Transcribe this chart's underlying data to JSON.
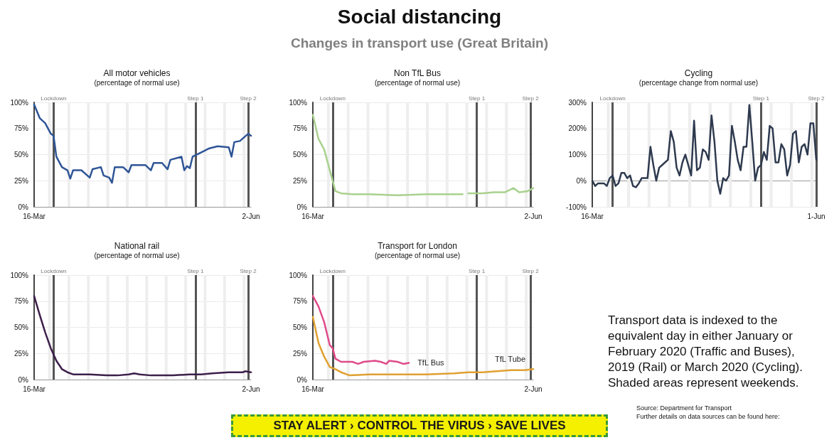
{
  "chart_data": [
    {
      "type": "other",
      "title": "Social distancing",
      "subtitle": "Changes in transport use (Great Britain)"
    },
    {
      "type": "line",
      "title": "All motor vehicles",
      "subtitle": "(percentage of normal use)",
      "marker": "none",
      "line_style": "solid",
      "grid": "y",
      "xlim": [
        "--03-16",
        "--06-02"
      ],
      "xticks": [
        {
          "value": "--03-16",
          "label": "16-Mar"
        },
        {
          "value": "--06-02",
          "label": "2-Jun"
        }
      ],
      "ylim": [
        0,
        100
      ],
      "yticks": [
        {
          "value": 0,
          "label": "0%"
        },
        {
          "value": 25,
          "label": "25%"
        },
        {
          "value": 50,
          "label": "50%"
        },
        {
          "value": 75,
          "label": "75%"
        },
        {
          "value": 100,
          "label": "100%"
        }
      ],
      "series": [
        {
          "color": "#2f5597",
          "x": [
            "--03-16",
            "--03-18",
            "--03-20",
            "--03-22",
            "--03-23",
            "--03-24",
            "--03-26",
            "--03-28",
            "--03-29",
            "--03-30",
            "--04-02",
            "--04-05",
            "--04-06",
            "--04-09",
            "--04-10",
            "--04-12",
            "--04-13",
            "--04-14",
            "--04-17",
            "--04-19",
            "--04-20",
            "--04-25",
            "--04-27",
            "--04-28",
            "--05-01",
            "--05-03",
            "--05-04",
            "--05-08",
            "--05-09",
            "--05-10",
            "--05-11",
            "--05-12",
            "--05-15",
            "--05-18",
            "--05-21",
            "--05-25",
            "--05-26",
            "--05-27",
            "--05-29",
            "--06-01",
            "--06-02"
          ],
          "values": [
            98,
            85,
            80,
            70,
            68,
            48,
            38,
            35,
            27,
            35,
            35,
            28,
            36,
            38,
            30,
            28,
            23,
            38,
            38,
            33,
            40,
            40,
            35,
            42,
            42,
            36,
            45,
            48,
            35,
            39,
            37,
            48,
            52,
            56,
            58,
            57,
            48,
            62,
            63,
            70,
            68
          ]
        }
      ],
      "ref_lines": [
        {
          "axis": "x",
          "value": "--03-23",
          "label": "Lockdown",
          "color": "#555555"
        },
        {
          "axis": "x",
          "value": "--05-13",
          "label": "Step 1",
          "color": "#555555"
        },
        {
          "axis": "x",
          "value": "--06-01",
          "label": "Step 2",
          "color": "#555555"
        }
      ],
      "bands": [
        {
          "axis": "x",
          "from": "--03-21",
          "to": "--03-22",
          "color": "#eeeeee"
        },
        {
          "axis": "x",
          "from": "--03-28",
          "to": "--03-29",
          "color": "#eeeeee"
        },
        {
          "axis": "x",
          "from": "--04-04",
          "to": "--04-05",
          "color": "#eeeeee"
        },
        {
          "axis": "x",
          "from": "--04-11",
          "to": "--04-12",
          "color": "#eeeeee"
        },
        {
          "axis": "x",
          "from": "--04-18",
          "to": "--04-19",
          "color": "#eeeeee"
        },
        {
          "axis": "x",
          "from": "--04-25",
          "to": "--04-26",
          "color": "#eeeeee"
        },
        {
          "axis": "x",
          "from": "--05-02",
          "to": "--05-03",
          "color": "#eeeeee"
        },
        {
          "axis": "x",
          "from": "--05-09",
          "to": "--05-10",
          "color": "#eeeeee"
        },
        {
          "axis": "x",
          "from": "--05-16",
          "to": "--05-17",
          "color": "#eeeeee"
        },
        {
          "axis": "x",
          "from": "--05-23",
          "to": "--05-24",
          "color": "#eeeeee"
        },
        {
          "axis": "x",
          "from": "--05-30",
          "to": "--05-31",
          "color": "#eeeeee"
        }
      ]
    },
    {
      "type": "line",
      "title": "Non TfL Bus",
      "subtitle": "(percentage of normal use)",
      "marker": "none",
      "line_style": "solid",
      "grid": "y",
      "xlim": [
        "--03-16",
        "--06-02"
      ],
      "xticks": [
        {
          "value": "--03-16",
          "label": "16-Mar"
        },
        {
          "value": "--06-02",
          "label": "2-Jun"
        }
      ],
      "ylim": [
        0,
        100
      ],
      "yticks": [
        {
          "value": 0,
          "label": "0%"
        },
        {
          "value": 25,
          "label": "25%"
        },
        {
          "value": 50,
          "label": "50%"
        },
        {
          "value": 75,
          "label": "75%"
        },
        {
          "value": 100,
          "label": "100%"
        }
      ],
      "series": [
        {
          "color": "#a9d18e",
          "x": [
            "--03-16",
            "--03-18",
            "--03-20",
            "--03-22",
            "--03-24",
            "--03-26",
            "--03-30",
            "--04-05",
            "--04-15",
            "--04-25",
            "--05-05",
            "--05-08",
            "--05-09",
            "--05-10",
            "--05-15",
            "--05-19",
            "--05-23",
            "--05-26",
            "--05-28",
            "--05-31",
            "--06-02"
          ],
          "values": [
            88,
            65,
            55,
            35,
            15,
            13,
            12,
            12,
            11,
            12,
            12,
            12,
            null,
            13,
            13,
            14,
            14,
            18,
            14,
            15,
            18
          ]
        }
      ],
      "ref_lines": [
        {
          "axis": "x",
          "value": "--03-23",
          "label": "Lockdown",
          "color": "#555555"
        },
        {
          "axis": "x",
          "value": "--05-13",
          "label": "Step 1",
          "color": "#555555"
        },
        {
          "axis": "x",
          "value": "--06-01",
          "label": "Step 2",
          "color": "#555555"
        }
      ],
      "bands": [
        {
          "axis": "x",
          "from": "--03-21",
          "to": "--03-22",
          "color": "#eeeeee"
        },
        {
          "axis": "x",
          "from": "--03-28",
          "to": "--03-29",
          "color": "#eeeeee"
        },
        {
          "axis": "x",
          "from": "--04-04",
          "to": "--04-05",
          "color": "#eeeeee"
        },
        {
          "axis": "x",
          "from": "--04-11",
          "to": "--04-12",
          "color": "#eeeeee"
        },
        {
          "axis": "x",
          "from": "--04-18",
          "to": "--04-19",
          "color": "#eeeeee"
        },
        {
          "axis": "x",
          "from": "--04-25",
          "to": "--04-26",
          "color": "#eeeeee"
        },
        {
          "axis": "x",
          "from": "--05-02",
          "to": "--05-03",
          "color": "#eeeeee"
        },
        {
          "axis": "x",
          "from": "--05-09",
          "to": "--05-10",
          "color": "#eeeeee"
        },
        {
          "axis": "x",
          "from": "--05-16",
          "to": "--05-17",
          "color": "#eeeeee"
        },
        {
          "axis": "x",
          "from": "--05-23",
          "to": "--05-24",
          "color": "#eeeeee"
        },
        {
          "axis": "x",
          "from": "--05-30",
          "to": "--05-31",
          "color": "#eeeeee"
        }
      ]
    },
    {
      "type": "line",
      "title": "Cycling",
      "subtitle": "(percentage change from normal use)",
      "marker": "none",
      "line_style": "solid",
      "grid": "y",
      "xlim": [
        "--03-16",
        "--06-01"
      ],
      "xticks": [
        {
          "value": "--03-16",
          "label": "16-Mar"
        },
        {
          "value": "--06-01",
          "label": "1-Jun"
        }
      ],
      "ylim": [
        -100,
        300
      ],
      "yticks": [
        {
          "value": -100,
          "label": "-100%"
        },
        {
          "value": 0,
          "label": "0%"
        },
        {
          "value": 100,
          "label": "100%"
        },
        {
          "value": 200,
          "label": "200%"
        },
        {
          "value": 300,
          "label": "300%"
        }
      ],
      "series": [
        {
          "color": "#2e3a4f",
          "x": [
            "--03-16",
            "--03-17",
            "--03-18",
            "--03-19",
            "--03-20",
            "--03-21",
            "--03-22",
            "--03-23",
            "--03-24",
            "--03-25",
            "--03-26",
            "--03-27",
            "--03-28",
            "--03-29",
            "--03-30",
            "--03-31",
            "--04-01",
            "--04-02",
            "--04-03",
            "--04-04",
            "--04-05",
            "--04-06",
            "--04-07",
            "--04-08",
            "--04-09",
            "--04-10",
            "--04-11",
            "--04-12",
            "--04-13",
            "--04-14",
            "--04-15",
            "--04-16",
            "--04-17",
            "--04-18",
            "--04-19",
            "--04-20",
            "--04-21",
            "--04-22",
            "--04-23",
            "--04-24",
            "--04-25",
            "--04-26",
            "--04-27",
            "--04-28",
            "--04-29",
            "--04-30",
            "--05-01",
            "--05-02",
            "--05-03",
            "--05-04",
            "--05-05",
            "--05-06",
            "--05-07",
            "--05-08",
            "--05-09",
            "--05-10",
            "--05-11",
            "--05-12",
            "--05-13",
            "--05-14",
            "--05-15",
            "--05-16",
            "--05-17",
            "--05-18",
            "--05-19",
            "--05-20",
            "--05-21",
            "--05-22",
            "--05-23",
            "--05-24",
            "--05-25",
            "--05-26",
            "--05-27",
            "--05-28",
            "--05-29",
            "--05-30",
            "--05-31",
            "--06-01"
          ],
          "values": [
            0,
            -20,
            -10,
            -10,
            -10,
            -20,
            10,
            20,
            -20,
            -10,
            30,
            30,
            10,
            20,
            -20,
            -25,
            -10,
            10,
            10,
            10,
            130,
            60,
            0,
            50,
            60,
            70,
            80,
            190,
            150,
            50,
            20,
            70,
            100,
            60,
            20,
            230,
            40,
            50,
            120,
            110,
            80,
            250,
            150,
            0,
            -50,
            10,
            0,
            20,
            210,
            150,
            80,
            40,
            130,
            130,
            290,
            150,
            0,
            50,
            60,
            110,
            80,
            210,
            200,
            70,
            70,
            140,
            120,
            20,
            60,
            180,
            190,
            70,
            130,
            140,
            100,
            220,
            220,
            80
          ]
        }
      ],
      "ref_lines": [
        {
          "axis": "x",
          "value": "--03-23",
          "label": "Lockdown",
          "color": "#555555"
        },
        {
          "axis": "x",
          "value": "--05-13",
          "label": "Step 1",
          "color": "#555555"
        },
        {
          "axis": "x",
          "value": "--06-01",
          "label": "Step 2",
          "color": "#555555"
        }
      ],
      "bands": [
        {
          "axis": "x",
          "from": "--03-21",
          "to": "--03-22",
          "color": "#eeeeee"
        },
        {
          "axis": "x",
          "from": "--03-28",
          "to": "--03-29",
          "color": "#eeeeee"
        },
        {
          "axis": "x",
          "from": "--04-04",
          "to": "--04-05",
          "color": "#eeeeee"
        },
        {
          "axis": "x",
          "from": "--04-11",
          "to": "--04-12",
          "color": "#eeeeee"
        },
        {
          "axis": "x",
          "from": "--04-18",
          "to": "--04-19",
          "color": "#eeeeee"
        },
        {
          "axis": "x",
          "from": "--04-25",
          "to": "--04-26",
          "color": "#eeeeee"
        },
        {
          "axis": "x",
          "from": "--05-02",
          "to": "--05-03",
          "color": "#eeeeee"
        },
        {
          "axis": "x",
          "from": "--05-09",
          "to": "--05-10",
          "color": "#eeeeee"
        },
        {
          "axis": "x",
          "from": "--05-16",
          "to": "--05-17",
          "color": "#eeeeee"
        },
        {
          "axis": "x",
          "from": "--05-23",
          "to": "--05-24",
          "color": "#eeeeee"
        },
        {
          "axis": "x",
          "from": "--05-30",
          "to": "--05-31",
          "color": "#eeeeee"
        }
      ]
    },
    {
      "type": "line",
      "title": "National rail",
      "subtitle": "(percentage of normal use)",
      "marker": "none",
      "line_style": "solid",
      "grid": "y",
      "xlim": [
        "--03-16",
        "--06-02"
      ],
      "xticks": [
        {
          "value": "--03-16",
          "label": "16-Mar"
        },
        {
          "value": "--06-02",
          "label": "2-Jun"
        }
      ],
      "ylim": [
        0,
        100
      ],
      "yticks": [
        {
          "value": 0,
          "label": "0%"
        },
        {
          "value": 25,
          "label": "25%"
        },
        {
          "value": 50,
          "label": "50%"
        },
        {
          "value": 75,
          "label": "75%"
        },
        {
          "value": 100,
          "label": "100%"
        }
      ],
      "series": [
        {
          "color": "#3d1f4a",
          "x": [
            "--03-16",
            "--03-18",
            "--03-20",
            "--03-22",
            "--03-24",
            "--03-26",
            "--03-28",
            "--03-30",
            "--04-05",
            "--04-11",
            "--04-15",
            "--04-19",
            "--04-21",
            "--04-23",
            "--04-27",
            "--05-05",
            "--05-11",
            "--05-15",
            "--05-19",
            "--05-25",
            "--05-30",
            "--05-31",
            "--06-02"
          ],
          "values": [
            80,
            62,
            45,
            30,
            18,
            10,
            7,
            5,
            5,
            4,
            4,
            5,
            6,
            5,
            4,
            4,
            5,
            5,
            6,
            7,
            7,
            8,
            7
          ]
        }
      ],
      "ref_lines": [
        {
          "axis": "x",
          "value": "--03-23",
          "label": "Lockdown",
          "color": "#555555"
        },
        {
          "axis": "x",
          "value": "--05-13",
          "label": "Step 1",
          "color": "#555555"
        },
        {
          "axis": "x",
          "value": "--06-01",
          "label": "Step 2",
          "color": "#555555"
        }
      ],
      "bands": [
        {
          "axis": "x",
          "from": "--03-21",
          "to": "--03-22",
          "color": "#eeeeee"
        },
        {
          "axis": "x",
          "from": "--03-28",
          "to": "--03-29",
          "color": "#eeeeee"
        },
        {
          "axis": "x",
          "from": "--04-04",
          "to": "--04-05",
          "color": "#eeeeee"
        },
        {
          "axis": "x",
          "from": "--04-11",
          "to": "--04-12",
          "color": "#eeeeee"
        },
        {
          "axis": "x",
          "from": "--04-18",
          "to": "--04-19",
          "color": "#eeeeee"
        },
        {
          "axis": "x",
          "from": "--04-25",
          "to": "--04-26",
          "color": "#eeeeee"
        },
        {
          "axis": "x",
          "from": "--05-02",
          "to": "--05-03",
          "color": "#eeeeee"
        },
        {
          "axis": "x",
          "from": "--05-09",
          "to": "--05-10",
          "color": "#eeeeee"
        },
        {
          "axis": "x",
          "from": "--05-16",
          "to": "--05-17",
          "color": "#eeeeee"
        },
        {
          "axis": "x",
          "from": "--05-23",
          "to": "--05-24",
          "color": "#eeeeee"
        },
        {
          "axis": "x",
          "from": "--05-30",
          "to": "--05-31",
          "color": "#eeeeee"
        }
      ]
    },
    {
      "type": "line",
      "title": "Transport for London",
      "subtitle": "(percentage of normal use)",
      "marker": "none",
      "line_style": "solid",
      "grid": "y",
      "xlim": [
        "--03-16",
        "--06-02"
      ],
      "xticks": [
        {
          "value": "--03-16",
          "label": "16-Mar"
        },
        {
          "value": "--06-02",
          "label": "2-Jun"
        }
      ],
      "ylim": [
        0,
        100
      ],
      "yticks": [
        {
          "value": 0,
          "label": "0%"
        },
        {
          "value": 25,
          "label": "25%"
        },
        {
          "value": 50,
          "label": "50%"
        },
        {
          "value": 75,
          "label": "75%"
        },
        {
          "value": 100,
          "label": "100%"
        }
      ],
      "series": [
        {
          "name": "TfL Bus",
          "color": "#e04a8a",
          "x": [
            "--03-16",
            "--03-18",
            "--03-20",
            "--03-22",
            "--03-23",
            "--03-24",
            "--03-26",
            "--03-30",
            "--04-01",
            "--04-03",
            "--04-07",
            "--04-09",
            "--04-11",
            "--04-12",
            "--04-15",
            "--04-17",
            "--04-19"
          ],
          "values": [
            80,
            70,
            55,
            33,
            30,
            20,
            17,
            17,
            15,
            17,
            18,
            17,
            15,
            18,
            17,
            15,
            16
          ]
        },
        {
          "name": "TfL Tube",
          "color": "#e0a030",
          "x": [
            "--03-16",
            "--03-18",
            "--03-20",
            "--03-22",
            "--03-24",
            "--03-26",
            "--03-29",
            "--04-05",
            "--04-15",
            "--04-25",
            "--05-05",
            "--05-10",
            "--05-15",
            "--05-20",
            "--05-25",
            "--05-30",
            "--06-02"
          ],
          "values": [
            60,
            35,
            22,
            12,
            10,
            7,
            4,
            5,
            5,
            5,
            6,
            7,
            7,
            8,
            9,
            9,
            10
          ]
        }
      ],
      "ref_lines": [
        {
          "axis": "x",
          "value": "--03-23",
          "label": "Lockdown",
          "color": "#555555"
        },
        {
          "axis": "x",
          "value": "--05-13",
          "label": "Step 1",
          "color": "#555555"
        },
        {
          "axis": "x",
          "value": "--06-01",
          "label": "Step 2",
          "color": "#555555"
        }
      ],
      "bands": [
        {
          "axis": "x",
          "from": "--03-21",
          "to": "--03-22",
          "color": "#eeeeee"
        },
        {
          "axis": "x",
          "from": "--03-28",
          "to": "--03-29",
          "color": "#eeeeee"
        },
        {
          "axis": "x",
          "from": "--04-04",
          "to": "--04-05",
          "color": "#eeeeee"
        },
        {
          "axis": "x",
          "from": "--04-11",
          "to": "--04-12",
          "color": "#eeeeee"
        },
        {
          "axis": "x",
          "from": "--04-18",
          "to": "--04-19",
          "color": "#eeeeee"
        },
        {
          "axis": "x",
          "from": "--04-25",
          "to": "--04-26",
          "color": "#eeeeee"
        },
        {
          "axis": "x",
          "from": "--05-02",
          "to": "--05-03",
          "color": "#eeeeee"
        },
        {
          "axis": "x",
          "from": "--05-09",
          "to": "--05-10",
          "color": "#eeeeee"
        },
        {
          "axis": "x",
          "from": "--05-16",
          "to": "--05-17",
          "color": "#eeeeee"
        },
        {
          "axis": "x",
          "from": "--05-23",
          "to": "--05-24",
          "color": "#eeeeee"
        },
        {
          "axis": "x",
          "from": "--05-30",
          "to": "--05-31",
          "color": "#eeeeee"
        }
      ]
    },
    {
      "type": "other",
      "annotations": [
        "Transport data is indexed to the equivalent day in either January or February 2020 (Traffic and Buses), 2019 (Rail) or March 2020 (Cycling). Shaded areas represent weekends."
      ]
    },
    {
      "type": "other",
      "title": "STAY ALERT › CONTROL THE VIRUS › SAVE LIVES"
    },
    {
      "type": "other",
      "annotations": [
        "Source: Department for Transport",
        "Further details on data sources can be found here:"
      ]
    }
  ]
}
